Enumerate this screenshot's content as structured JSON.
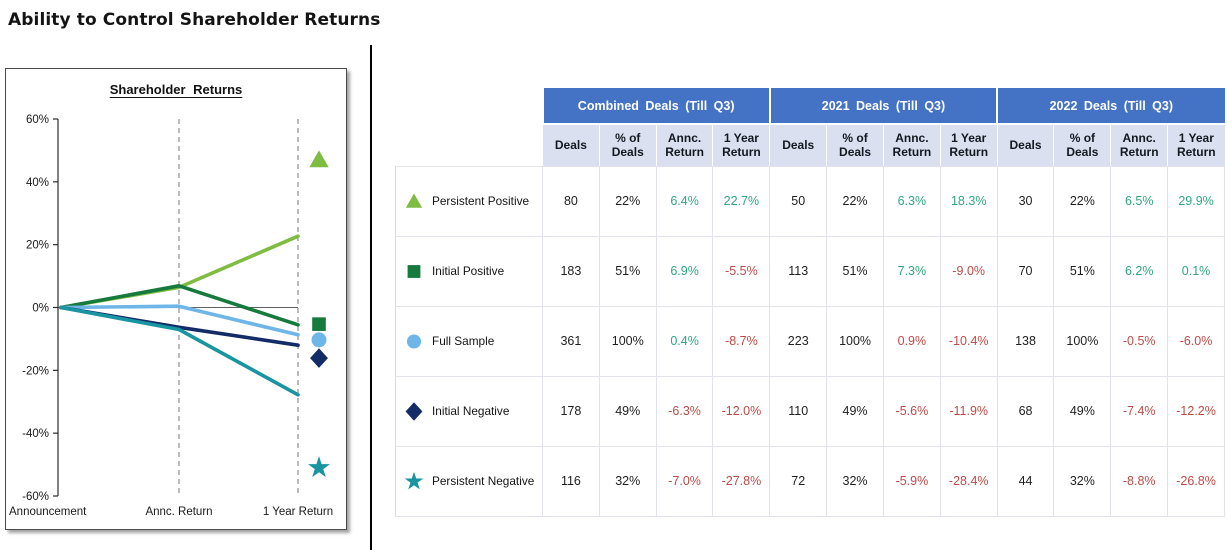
{
  "page": {
    "title": "Ability to Control Shareholder Returns"
  },
  "chart_data": {
    "type": "line",
    "title": "Shareholder Returns",
    "x_categories": [
      "Announcement",
      "Annc. Return",
      "1 Year Return"
    ],
    "y_tick_labels": [
      "60%",
      "40%",
      "20%",
      "0%",
      "-20%",
      "-40%",
      "-60%"
    ],
    "ylim": [
      -60,
      60
    ],
    "grid": "dashed vertical lines at Annc. Return and 1 Year Return, solid zero line",
    "legend_position": "markers right of plot",
    "series": [
      {
        "name": "Persistent Positive",
        "color": "#7FBC42",
        "marker": "triangle",
        "values": [
          0,
          6.4,
          22.7
        ],
        "marker_label_y": 47
      },
      {
        "name": "Initial Positive",
        "color": "#157A3B",
        "marker": "square",
        "values": [
          0,
          6.9,
          -5.5
        ],
        "marker_label_y": -5.3
      },
      {
        "name": "Full Sample",
        "color": "#6EB5E8",
        "marker": "circle",
        "values": [
          0,
          0.4,
          -8.7
        ],
        "marker_label_y": -10.3
      },
      {
        "name": "Initial Negative",
        "color": "#132B66",
        "marker": "diamond",
        "values": [
          0,
          -6.3,
          -12.0
        ],
        "marker_label_y": -16.1
      },
      {
        "name": "Persistent Negative",
        "color": "#1895A0",
        "marker": "star",
        "values": [
          0,
          -7.0,
          -27.8
        ],
        "marker_label_y": -51
      }
    ]
  },
  "table": {
    "groups": [
      {
        "label": "Combined Deals (Till Q3)"
      },
      {
        "label": "2021 Deals (Till Q3)"
      },
      {
        "label": "2022 Deals (Till Q3)"
      }
    ],
    "sub_headers": [
      "Deals",
      "% of\nDeals",
      "Annc.\nReturn",
      "1 Year\nReturn"
    ],
    "rows": [
      {
        "label": "Persistent Positive",
        "marker": "triangle",
        "color": "#7FBC42",
        "values": [
          {
            "t": "80",
            "s": "plain"
          },
          {
            "t": "22%",
            "s": "plain"
          },
          {
            "t": "6.4%",
            "s": "pos"
          },
          {
            "t": "22.7%",
            "s": "pos"
          },
          {
            "t": "50",
            "s": "plain"
          },
          {
            "t": "22%",
            "s": "plain"
          },
          {
            "t": "6.3%",
            "s": "pos"
          },
          {
            "t": "18.3%",
            "s": "pos"
          },
          {
            "t": "30",
            "s": "plain"
          },
          {
            "t": "22%",
            "s": "plain"
          },
          {
            "t": "6.5%",
            "s": "pos"
          },
          {
            "t": "29.9%",
            "s": "pos"
          }
        ]
      },
      {
        "label": "Initial Positive",
        "marker": "square",
        "color": "#157A3B",
        "values": [
          {
            "t": "183",
            "s": "plain"
          },
          {
            "t": "51%",
            "s": "plain"
          },
          {
            "t": "6.9%",
            "s": "pos"
          },
          {
            "t": "-5.5%",
            "s": "neg"
          },
          {
            "t": "113",
            "s": "plain"
          },
          {
            "t": "51%",
            "s": "plain"
          },
          {
            "t": "7.3%",
            "s": "pos"
          },
          {
            "t": "-9.0%",
            "s": "neg"
          },
          {
            "t": "70",
            "s": "plain"
          },
          {
            "t": "51%",
            "s": "plain"
          },
          {
            "t": "6.2%",
            "s": "pos"
          },
          {
            "t": "0.1%",
            "s": "pos"
          }
        ]
      },
      {
        "label": "Full Sample",
        "marker": "circle",
        "color": "#6EB5E8",
        "values": [
          {
            "t": "361",
            "s": "plain"
          },
          {
            "t": "100%",
            "s": "plain"
          },
          {
            "t": "0.4%",
            "s": "pos"
          },
          {
            "t": "-8.7%",
            "s": "neg"
          },
          {
            "t": "223",
            "s": "plain"
          },
          {
            "t": "100%",
            "s": "plain"
          },
          {
            "t": "0.9%",
            "s": "neg"
          },
          {
            "t": "-10.4%",
            "s": "neg"
          },
          {
            "t": "138",
            "s": "plain"
          },
          {
            "t": "100%",
            "s": "plain"
          },
          {
            "t": "-0.5%",
            "s": "neg"
          },
          {
            "t": "-6.0%",
            "s": "neg"
          }
        ]
      },
      {
        "label": "Initial Negative",
        "marker": "diamond",
        "color": "#132B66",
        "values": [
          {
            "t": "178",
            "s": "plain"
          },
          {
            "t": "49%",
            "s": "plain"
          },
          {
            "t": "-6.3%",
            "s": "neg"
          },
          {
            "t": "-12.0%",
            "s": "neg"
          },
          {
            "t": "110",
            "s": "plain"
          },
          {
            "t": "49%",
            "s": "plain"
          },
          {
            "t": "-5.6%",
            "s": "neg"
          },
          {
            "t": "-11.9%",
            "s": "neg"
          },
          {
            "t": "68",
            "s": "plain"
          },
          {
            "t": "49%",
            "s": "plain"
          },
          {
            "t": "-7.4%",
            "s": "neg"
          },
          {
            "t": "-12.2%",
            "s": "neg"
          }
        ]
      },
      {
        "label": "Persistent Negative",
        "marker": "star",
        "color": "#1895A0",
        "values": [
          {
            "t": "116",
            "s": "plain"
          },
          {
            "t": "32%",
            "s": "plain"
          },
          {
            "t": "-7.0%",
            "s": "neg"
          },
          {
            "t": "-27.8%",
            "s": "neg"
          },
          {
            "t": "72",
            "s": "plain"
          },
          {
            "t": "32%",
            "s": "plain"
          },
          {
            "t": "-5.9%",
            "s": "neg"
          },
          {
            "t": "-28.4%",
            "s": "neg"
          },
          {
            "t": "44",
            "s": "plain"
          },
          {
            "t": "32%",
            "s": "plain"
          },
          {
            "t": "-8.8%",
            "s": "neg"
          },
          {
            "t": "-26.8%",
            "s": "neg"
          }
        ]
      }
    ]
  }
}
